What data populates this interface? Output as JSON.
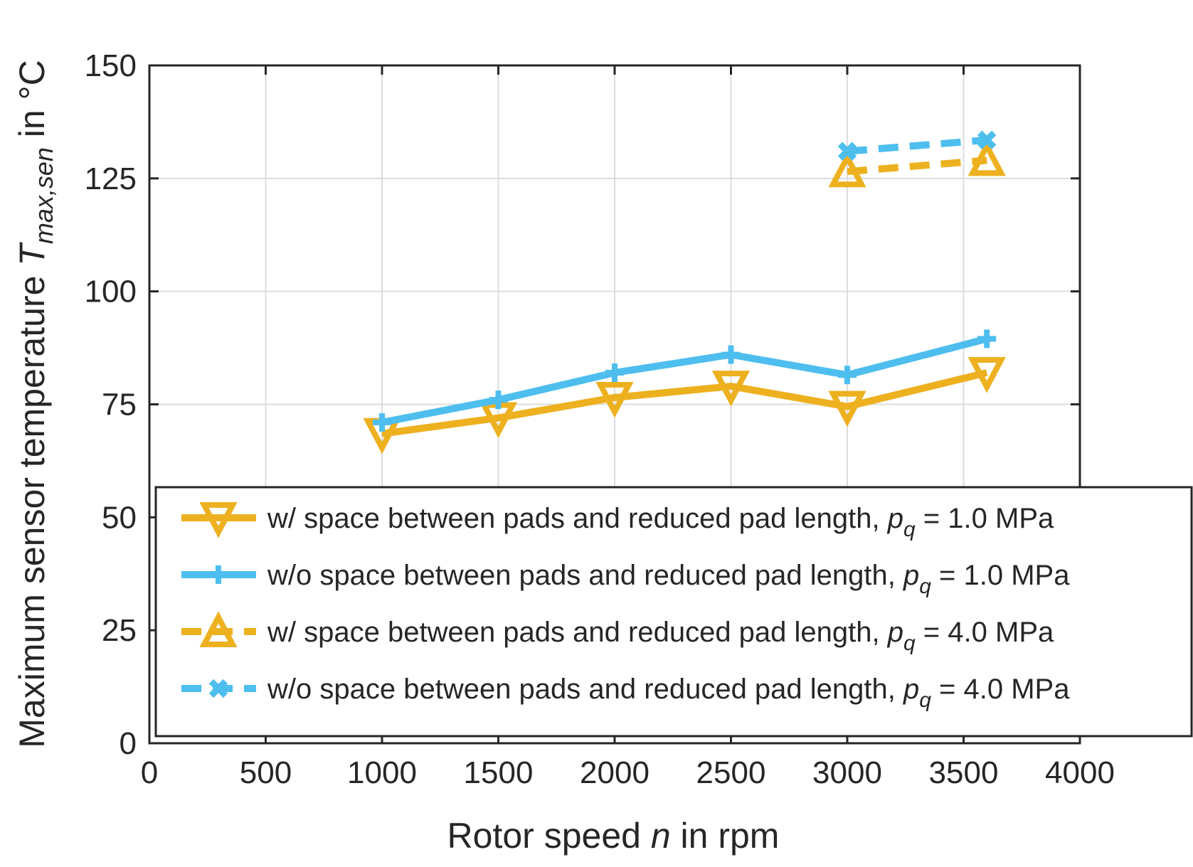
{
  "colors": {
    "orange": "#EDB120",
    "blue": "#4DBEEE",
    "axis": "#262626",
    "grid": "#dcdcdc"
  },
  "chart_data": {
    "type": "line",
    "xlabel": {
      "pre": "Rotor speed ",
      "var": "n",
      "post": " in rpm"
    },
    "ylabel": {
      "pre": "Maximum sensor temperature ",
      "var": "T",
      "sub": "max,sen",
      "post": " in °C"
    },
    "xlim": [
      0,
      4000
    ],
    "ylim": [
      0,
      150
    ],
    "x_ticks": [
      0,
      500,
      1000,
      1500,
      2000,
      2500,
      3000,
      3500,
      4000
    ],
    "x_tick_labels": [
      "0",
      "500",
      "1000",
      "1500",
      "2000",
      "2500",
      "3000",
      "3500",
      "4000"
    ],
    "y_ticks": [
      0,
      25,
      50,
      75,
      100,
      125,
      150
    ],
    "y_tick_labels": [
      "0",
      "25",
      "50",
      "75",
      "100",
      "125",
      "150"
    ],
    "grid": true,
    "legend_position": "bottom",
    "series": [
      {
        "id": "s1",
        "label_pre": "w/ space between pads and reduced pad length, ",
        "label_var": "p",
        "label_sub": "q",
        "label_post": " = 1.0 MPa",
        "color": "#EDB120",
        "line": "solid",
        "marker": "triangle-down",
        "x": [
          1000,
          1500,
          2000,
          2500,
          3000,
          3600
        ],
        "y": [
          68.5,
          72,
          76.5,
          79,
          74.5,
          82
        ]
      },
      {
        "id": "s2",
        "label_pre": "w/o space between pads and reduced pad length, ",
        "label_var": "p",
        "label_sub": "q",
        "label_post": " = 1.0 MPa",
        "color": "#4DBEEE",
        "line": "solid",
        "marker": "plus",
        "x": [
          1000,
          1500,
          2000,
          2500,
          3000,
          3600
        ],
        "y": [
          71,
          76,
          82,
          86,
          81.5,
          89.5
        ]
      },
      {
        "id": "s3",
        "label_pre": "w/ space between pads and reduced pad length, ",
        "label_var": "p",
        "label_sub": "q",
        "label_post": " = 4.0 MPa",
        "color": "#EDB120",
        "line": "dashed",
        "marker": "triangle-up",
        "x": [
          3000,
          3600
        ],
        "y": [
          126.5,
          129
        ]
      },
      {
        "id": "s4",
        "label_pre": "w/o space between pads and reduced pad length, ",
        "label_var": "p",
        "label_sub": "q",
        "label_post": " = 4.0 MPa",
        "color": "#4DBEEE",
        "line": "dashed",
        "marker": "x",
        "x": [
          3000,
          3600
        ],
        "y": [
          131,
          133.5
        ]
      }
    ]
  }
}
